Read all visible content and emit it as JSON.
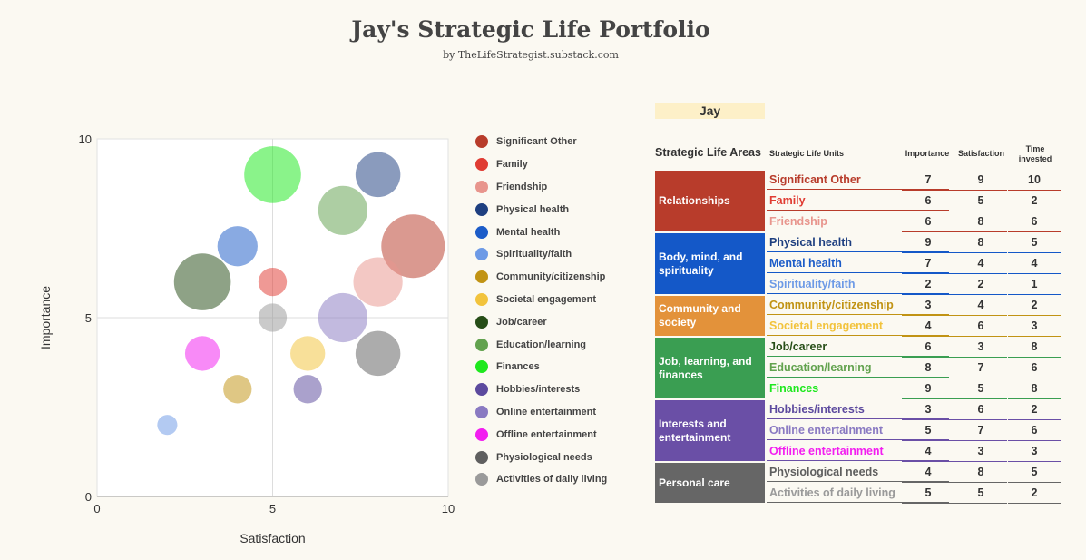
{
  "page": {
    "title": "Jay's Strategic Life Portfolio",
    "subtitle": "by TheLifeStrategist.substack.com"
  },
  "chart_data": {
    "type": "bubble",
    "xlabel": "Satisfaction",
    "ylabel": "Importance",
    "xlim": [
      0,
      10
    ],
    "ylim": [
      0,
      10
    ],
    "xticks": [
      "0",
      "5",
      "10"
    ],
    "yticks": [
      "0",
      "5",
      "10"
    ],
    "grid": true,
    "legend_position": "right",
    "size_variable": "Time invested",
    "series": [
      {
        "name": "Significant Other",
        "color": "#b83c2b",
        "x": 9,
        "y": 7,
        "size": 10
      },
      {
        "name": "Family",
        "color": "#e03c33",
        "x": 5,
        "y": 6,
        "size": 2
      },
      {
        "name": "Friendship",
        "color": "#e8958d",
        "x": 8,
        "y": 6,
        "size": 6
      },
      {
        "name": "Physical health",
        "color": "#1e3f80",
        "x": 8,
        "y": 9,
        "size": 5
      },
      {
        "name": "Mental health",
        "color": "#1c5cc8",
        "x": 4,
        "y": 7,
        "size": 4
      },
      {
        "name": "Spirituality/faith",
        "color": "#6d9ae6",
        "x": 2,
        "y": 2,
        "size": 1
      },
      {
        "name": "Community/citizenship",
        "color": "#c19314",
        "x": 4,
        "y": 3,
        "size": 2
      },
      {
        "name": "Societal engagement",
        "color": "#f2c33c",
        "x": 6,
        "y": 4,
        "size": 3
      },
      {
        "name": "Job/career",
        "color": "#264d17",
        "x": 3,
        "y": 6,
        "size": 8
      },
      {
        "name": "Education/learning",
        "color": "#62a24e",
        "x": 7,
        "y": 8,
        "size": 6
      },
      {
        "name": "Finances",
        "color": "#1ee81e",
        "x": 5,
        "y": 9,
        "size": 8
      },
      {
        "name": "Hobbies/interests",
        "color": "#5c4a9e",
        "x": 6,
        "y": 3,
        "size": 2
      },
      {
        "name": "Online entertainment",
        "color": "#8a7ac2",
        "x": 7,
        "y": 5,
        "size": 6
      },
      {
        "name": "Offline entertainment",
        "color": "#f21ef0",
        "x": 3,
        "y": 4,
        "size": 3
      },
      {
        "name": "Physiological needs",
        "color": "#5f5f5f",
        "x": 8,
        "y": 4,
        "size": 5
      },
      {
        "name": "Activities of daily living",
        "color": "#9a9a9a",
        "x": 5,
        "y": 5,
        "size": 2
      }
    ]
  },
  "table": {
    "person": "Jay",
    "headers": {
      "areas": "Strategic Life Areas",
      "units": "Strategic Life Units",
      "importance": "Importance",
      "satisfaction": "Satisfaction",
      "time_invested": "Time invested"
    },
    "areas": [
      {
        "label": "Relationships",
        "color": "#b83c2b",
        "rows": 3
      },
      {
        "label": "Body, mind, and spirituality",
        "color": "#1458c8",
        "rows": 3
      },
      {
        "label": "Community and society",
        "color": "#e3923a",
        "rows": 2
      },
      {
        "label": "Job, learning, and finances",
        "color": "#3a9e52",
        "rows": 3
      },
      {
        "label": "Interests and entertainment",
        "color": "#6a4fa6",
        "rows": 3
      },
      {
        "label": "Personal care",
        "color": "#666666",
        "rows": 2
      }
    ],
    "rows": [
      {
        "unit": "Significant Other",
        "color": "#b83c2b",
        "line": "#b83c2b",
        "importance": "7",
        "satisfaction": "9",
        "time": "10"
      },
      {
        "unit": "Family",
        "color": "#e03c33",
        "line": "#b83c2b",
        "importance": "6",
        "satisfaction": "5",
        "time": "2"
      },
      {
        "unit": "Friendship",
        "color": "#e8958d",
        "line": "#b83c2b",
        "importance": "6",
        "satisfaction": "8",
        "time": "6"
      },
      {
        "unit": "Physical health",
        "color": "#1e3f80",
        "line": "#1458c8",
        "importance": "9",
        "satisfaction": "8",
        "time": "5"
      },
      {
        "unit": "Mental health",
        "color": "#1c5cc8",
        "line": "#1458c8",
        "importance": "7",
        "satisfaction": "4",
        "time": "4"
      },
      {
        "unit": "Spirituality/faith",
        "color": "#6d9ae6",
        "line": "#1458c8",
        "importance": "2",
        "satisfaction": "2",
        "time": "1"
      },
      {
        "unit": "Community/citizenship",
        "color": "#c19314",
        "line": "#c19314",
        "importance": "3",
        "satisfaction": "4",
        "time": "2"
      },
      {
        "unit": "Societal engagement",
        "color": "#f2c33c",
        "line": "#c19314",
        "importance": "4",
        "satisfaction": "6",
        "time": "3"
      },
      {
        "unit": "Job/career",
        "color": "#264d17",
        "line": "#3a9e52",
        "importance": "6",
        "satisfaction": "3",
        "time": "8"
      },
      {
        "unit": "Education/learning",
        "color": "#62a24e",
        "line": "#3a9e52",
        "importance": "8",
        "satisfaction": "7",
        "time": "6"
      },
      {
        "unit": "Finances",
        "color": "#1ee81e",
        "line": "#3a9e52",
        "importance": "9",
        "satisfaction": "5",
        "time": "8"
      },
      {
        "unit": "Hobbies/interests",
        "color": "#5c4a9e",
        "line": "#6a4fa6",
        "importance": "3",
        "satisfaction": "6",
        "time": "2"
      },
      {
        "unit": "Online entertainment",
        "color": "#8a7ac2",
        "line": "#6a4fa6",
        "importance": "5",
        "satisfaction": "7",
        "time": "6"
      },
      {
        "unit": "Offline entertainment",
        "color": "#f21ef0",
        "line": "#6a4fa6",
        "importance": "4",
        "satisfaction": "3",
        "time": "3"
      },
      {
        "unit": "Physiological needs",
        "color": "#5f5f5f",
        "line": "#666666",
        "importance": "4",
        "satisfaction": "8",
        "time": "5"
      },
      {
        "unit": "Activities of daily living",
        "color": "#9a9a9a",
        "line": "#666666",
        "importance": "5",
        "satisfaction": "5",
        "time": "2"
      }
    ]
  }
}
